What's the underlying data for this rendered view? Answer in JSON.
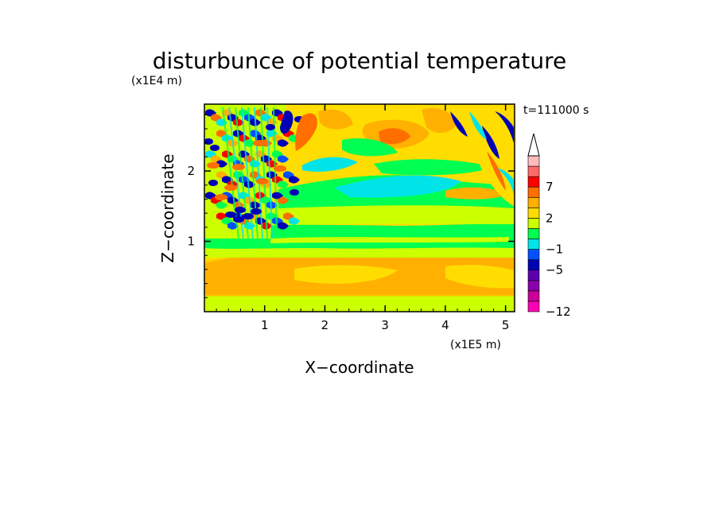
{
  "chart_data": {
    "type": "heatmap",
    "title": "disturbunce of potential temperature",
    "z_unit": "(x1E4 m)",
    "x_unit": "(x1E5 m)",
    "xlabel": "X−coordinate",
    "ylabel": "Z−coordinate",
    "time_label": "t=111000 s",
    "x_ticks": [
      "1",
      "2",
      "3",
      "4",
      "5"
    ],
    "y_ticks": [
      "1",
      "2"
    ],
    "xlim": [
      0,
      5.15
    ],
    "ylim": [
      0,
      2.95
    ],
    "legend_labels": [
      "7",
      "2",
      "−1",
      "−5",
      "−12"
    ],
    "colorbar": [
      {
        "color": "#ff00b4",
        "value": "-12"
      },
      {
        "color": "#cc0099",
        "value": "-10"
      },
      {
        "color": "#8800aa",
        "value": "-8"
      },
      {
        "color": "#5c00b0",
        "value": "-6"
      },
      {
        "color": "#0000b4",
        "value": "-5"
      },
      {
        "color": "#0050ff",
        "value": "-4"
      },
      {
        "color": "#00e4e8",
        "value": "-1"
      },
      {
        "color": "#00ff50",
        "value": "0"
      },
      {
        "color": "#ccff00",
        "value": "1"
      },
      {
        "color": "#ffdd00",
        "value": "2"
      },
      {
        "color": "#ffb000",
        "value": "3"
      },
      {
        "color": "#ff6e00",
        "value": "5"
      },
      {
        "color": "#ff0000",
        "value": "7"
      },
      {
        "color": "#ff6a6a",
        "value": "9"
      },
      {
        "color": "#ffbcbc",
        "value": "11"
      }
    ]
  }
}
